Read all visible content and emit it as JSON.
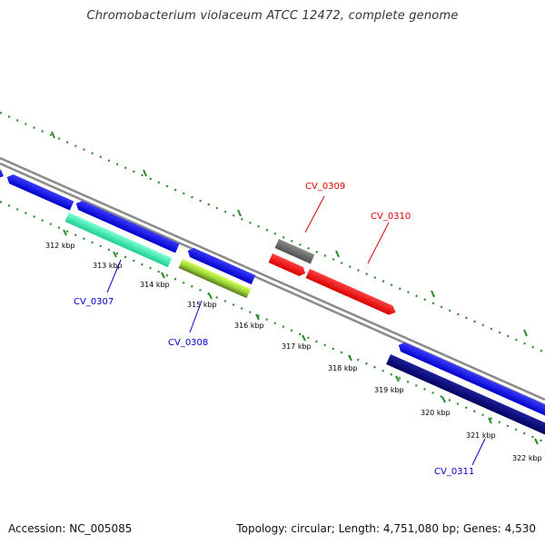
{
  "header": {
    "title": "Chromobacterium violaceum ATCC 12472, complete genome"
  },
  "footer": {
    "accession": "Accession: NC_005085",
    "summary": "Topology: circular; Length: 4,751,080 bp; Genes: 4,530"
  },
  "ticks": [
    {
      "label": "312 kbp"
    },
    {
      "label": "313 kbp"
    },
    {
      "label": "314 kbp"
    },
    {
      "label": "315 kbp"
    },
    {
      "label": "316 kbp"
    },
    {
      "label": "317 kbp"
    },
    {
      "label": "318 kbp"
    },
    {
      "label": "319 kbp"
    },
    {
      "label": "320 kbp"
    },
    {
      "label": "321 kbp"
    },
    {
      "label": "322 kbp"
    }
  ],
  "gene_labels": [
    {
      "name": "CV_0307",
      "color": "#0000cc"
    },
    {
      "name": "CV_0308",
      "color": "#0000cc"
    },
    {
      "name": "CV_0309",
      "color": "#dd0000"
    },
    {
      "name": "CV_0310",
      "color": "#dd0000"
    },
    {
      "name": "CV_0311",
      "color": "#0000cc"
    }
  ],
  "colors": {
    "backbone": "#808080",
    "dots": "#2a8a2a",
    "blue_gene": "#0000ee",
    "navy_gene": "#00007a",
    "teal_gene": "#2ee8a8",
    "lime_gene": "#9ad63a",
    "red_gene": "#ff0000",
    "gray_gene": "#6a6a6a"
  }
}
